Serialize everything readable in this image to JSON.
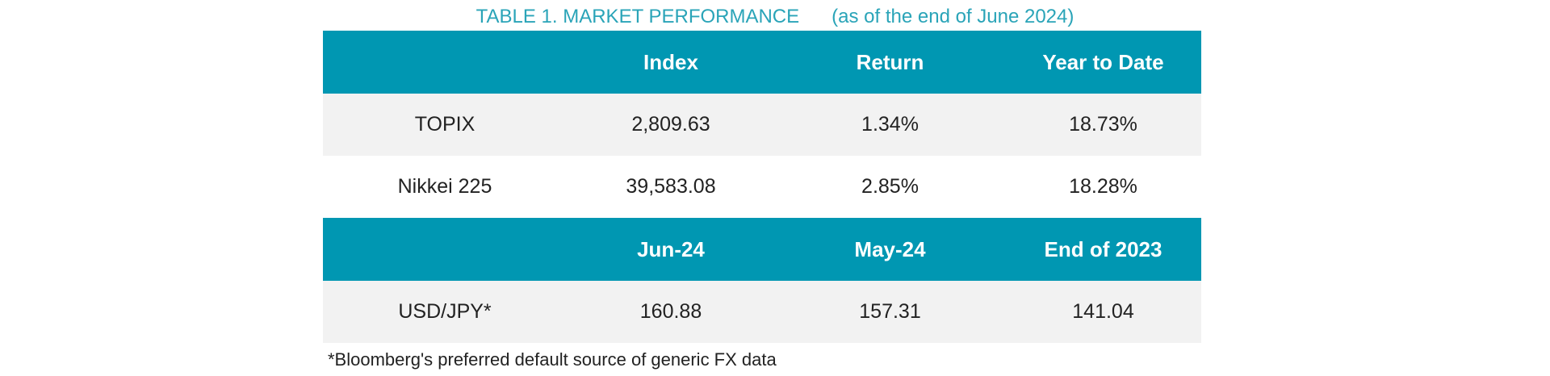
{
  "caption": {
    "title": "TABLE 1. MARKET PERFORMANCE",
    "subtitle": "(as of the end of June 2024)"
  },
  "table": {
    "header1": [
      "",
      "Index",
      "Return",
      "Year to Date"
    ],
    "rows1": [
      [
        "TOPIX",
        "2,809.63",
        "1.34%",
        "18.73%"
      ],
      [
        "Nikkei 225",
        "39,583.08",
        "2.85%",
        "18.28%"
      ]
    ],
    "header2": [
      "",
      "Jun-24",
      "May-24",
      "End of 2023"
    ],
    "rows2": [
      [
        "USD/JPY*",
        "160.88",
        "157.31",
        "141.04"
      ]
    ]
  },
  "footnote": "*Bloomberg's preferred default source of generic FX data",
  "colors": {
    "title": "#2aa4b8",
    "header_bg": "#0097b2",
    "row_shade": "#f2f2f2"
  }
}
